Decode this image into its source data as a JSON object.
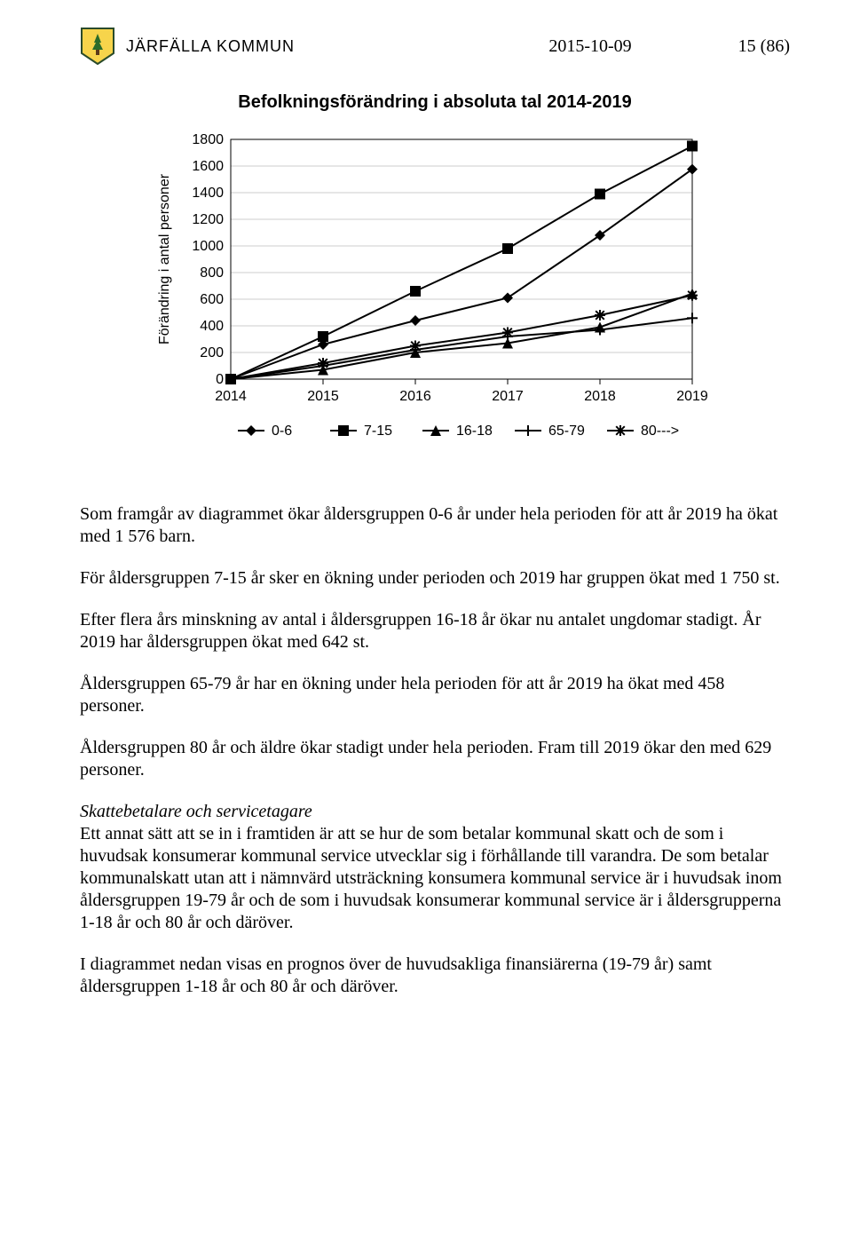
{
  "header": {
    "org_name": "JÄRFÄLLA KOMMUN",
    "date": "2015-10-09",
    "page_num": "15 (86)"
  },
  "chart": {
    "type": "line",
    "title": "Befolkningsförändring i absoluta tal 2014-2019",
    "y_label": "Förändring i antal personer",
    "x_categories": [
      "2014",
      "2015",
      "2016",
      "2017",
      "2018",
      "2019"
    ],
    "ylim": [
      0,
      1800
    ],
    "ytick_step": 200,
    "y_ticks": [
      0,
      200,
      400,
      600,
      800,
      1000,
      1200,
      1400,
      1600,
      1800
    ],
    "axis_fontsize": 16,
    "tick_fontsize": 16,
    "tick_font": "Arial",
    "background_color": "#ffffff",
    "grid_color": "#999999",
    "axis_color": "#000000",
    "line_color": "#000000",
    "line_width": 2,
    "marker_size": 6,
    "series": [
      {
        "name": "0-6",
        "marker": "diamond",
        "values": [
          0,
          260,
          440,
          610,
          1080,
          1576
        ]
      },
      {
        "name": "7-15",
        "marker": "square",
        "values": [
          0,
          320,
          660,
          980,
          1390,
          1750
        ]
      },
      {
        "name": "16-18",
        "marker": "triangle",
        "values": [
          0,
          70,
          200,
          270,
          390,
          642
        ]
      },
      {
        "name": "65-79",
        "marker": "plus",
        "values": [
          0,
          100,
          220,
          320,
          370,
          458
        ]
      },
      {
        "name": "80--->",
        "marker": "asterisk",
        "values": [
          0,
          120,
          250,
          350,
          480,
          629
        ]
      }
    ],
    "legend": {
      "items": [
        "0-6",
        "7-15",
        "16-18",
        "65-79",
        "80--->"
      ]
    }
  },
  "paragraphs": {
    "p1": "Som framgår av diagrammet ökar åldersgruppen 0-6 år under hela perioden för att år 2019 ha ökat med 1 576 barn.",
    "p2": "För åldersgruppen 7-15 år sker en ökning under perioden och 2019 har gruppen ökat med 1 750 st.",
    "p3": "Efter flera års minskning av antal i åldersgruppen 16-18 år ökar nu antalet ungdomar stadigt. År 2019 har åldersgruppen ökat med 642 st.",
    "p4": "Åldersgruppen 65-79 år har en ökning under hela perioden för att år 2019 ha ökat med 458 personer.",
    "p5": "Åldersgruppen 80 år och äldre ökar stadigt under hela perioden. Fram till 2019 ökar den med 629 personer.",
    "subhead": "Skattebetalare och servicetagare",
    "p6": "Ett annat sätt att se in i framtiden är att se hur de som betalar kommunal skatt och de som i huvudsak konsumerar kommunal service utvecklar sig i förhållande till varandra. De som betalar kommunalskatt utan att i nämnvärd utsträckning konsumera kommunal service är i huvudsak inom åldersgruppen 19-79 år och de som i huvudsak konsumerar kommunal service är i åldersgrupperna 1-18 år och 80 år och däröver.",
    "p7": "I diagrammet nedan visas en prognos över de huvudsakliga finansiärerna (19-79 år) samt åldersgruppen 1-18 år och 80 år och däröver."
  }
}
